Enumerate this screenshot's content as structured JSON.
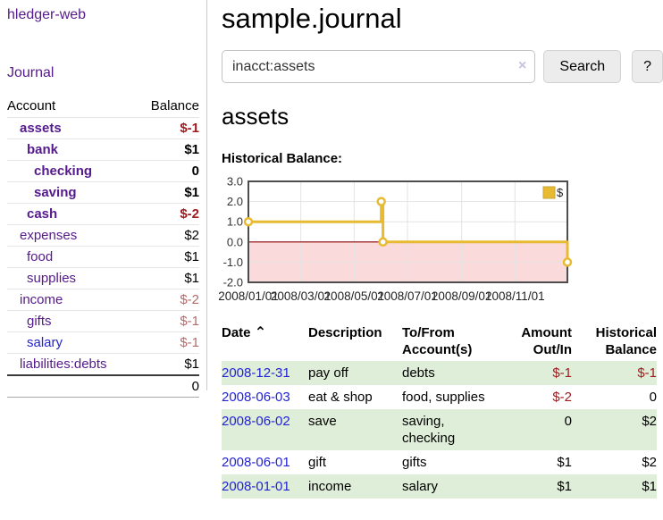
{
  "app": {
    "title": "hledger-web"
  },
  "sidebar": {
    "journal_label": "Journal",
    "accounts": {
      "account_header": "Account",
      "balance_header": "Balance",
      "rows": [
        {
          "name": "assets",
          "depth": 1,
          "bold": true,
          "link_style": "purple",
          "balance": "$-1",
          "balance_style": "negative"
        },
        {
          "name": "bank",
          "depth": 2,
          "bold": true,
          "link_style": "purple",
          "balance": "$1",
          "balance_style": "normal"
        },
        {
          "name": "checking",
          "depth": 3,
          "bold": true,
          "link_style": "purple",
          "balance": "0",
          "balance_style": "normal"
        },
        {
          "name": "saving",
          "depth": 3,
          "bold": true,
          "link_style": "purple",
          "balance": "$1",
          "balance_style": "normal"
        },
        {
          "name": "cash",
          "depth": 2,
          "bold": true,
          "link_style": "purple",
          "balance": "$-2",
          "balance_style": "negative"
        },
        {
          "name": "expenses",
          "depth": 1,
          "bold": false,
          "link_style": "purple",
          "balance": "$2",
          "balance_style": "normal"
        },
        {
          "name": "food",
          "depth": 2,
          "bold": false,
          "link_style": "purple",
          "balance": "$1",
          "balance_style": "normal"
        },
        {
          "name": "supplies",
          "depth": 2,
          "bold": false,
          "link_style": "purple",
          "balance": "$1",
          "balance_style": "normal"
        },
        {
          "name": "income",
          "depth": 1,
          "bold": false,
          "link_style": "purple",
          "balance": "$-2",
          "balance_style": "negative-muted"
        },
        {
          "name": "gifts",
          "depth": 2,
          "bold": false,
          "link_style": "purple",
          "balance": "$-1",
          "balance_style": "negative-muted"
        },
        {
          "name": "salary",
          "depth": 2,
          "bold": false,
          "link_style": "blue",
          "balance": "$-1",
          "balance_style": "negative-muted"
        },
        {
          "name": "liabilities:debts",
          "depth": 1,
          "bold": false,
          "link_style": "purple",
          "balance": "$1",
          "balance_style": "normal"
        }
      ],
      "total": "0"
    }
  },
  "main": {
    "title": "sample.journal",
    "search": {
      "value": "inacct:assets",
      "clear_icon": "×",
      "button_label": "Search",
      "help_label": "?"
    },
    "account_heading": "assets",
    "chart_label": "Historical Balance:"
  },
  "chart_data": {
    "type": "line",
    "step": true,
    "title": "Historical Balance",
    "legend": [
      {
        "label": "$",
        "color": "#e8ba31"
      }
    ],
    "legend_position": "top-right",
    "grid": true,
    "colors": {
      "line": "#e8ba31",
      "marker_fill": "#ffffff",
      "negative_region_fill": "#fadada",
      "zero_line": "#8b0000",
      "gridline": "#e3e3e3",
      "border": "#4d4d4d"
    },
    "xlim_days": [
      0,
      365
    ],
    "ylim": [
      -2,
      3
    ],
    "y_ticks": [
      {
        "label": "3.0",
        "value": 3
      },
      {
        "label": "2.0",
        "value": 2
      },
      {
        "label": "1.0",
        "value": 1
      },
      {
        "label": "0.0",
        "value": 0
      },
      {
        "label": "-1.0",
        "value": -1
      },
      {
        "label": "-2.0",
        "value": -2
      }
    ],
    "x_ticks": [
      {
        "label": "2008/01/01",
        "day": 0
      },
      {
        "label": "2008/03/01",
        "day": 60
      },
      {
        "label": "2008/05/01",
        "day": 121
      },
      {
        "label": "2008/07/01",
        "day": 182
      },
      {
        "label": "2008/09/01",
        "day": 244
      },
      {
        "label": "2008/11/01",
        "day": 305
      }
    ],
    "series": [
      {
        "name": "$",
        "points": [
          {
            "date": "2008-01-01",
            "day": 0,
            "value": 1
          },
          {
            "date": "2008-06-01",
            "day": 152,
            "value": 2
          },
          {
            "date": "2008-06-03",
            "day": 154,
            "value": 0
          },
          {
            "date": "2008-12-31",
            "day": 365,
            "value": -1
          }
        ]
      }
    ]
  },
  "register": {
    "headers": {
      "date": "Date",
      "sort_icon": "⌃",
      "description": "Description",
      "account_line1": "To/From",
      "account_line2": "Account(s)",
      "amount_line1": "Amount",
      "amount_line2": "Out/In",
      "balance_line1": "Historical",
      "balance_line2": "Balance"
    },
    "rows": [
      {
        "date": "2008-12-31",
        "description": "pay off",
        "accounts": "debts",
        "amount": "$-1",
        "amount_negative": true,
        "balance": "$-1",
        "balance_negative": true
      },
      {
        "date": "2008-06-03",
        "description": "eat & shop",
        "accounts": "food, supplies",
        "amount": "$-2",
        "amount_negative": true,
        "balance": "0",
        "balance_negative": false
      },
      {
        "date": "2008-06-02",
        "description": "save",
        "accounts": "saving, checking",
        "amount": "0",
        "amount_negative": false,
        "balance": "$2",
        "balance_negative": false
      },
      {
        "date": "2008-06-01",
        "description": "gift",
        "accounts": "gifts",
        "amount": "$1",
        "amount_negative": false,
        "balance": "$2",
        "balance_negative": false
      },
      {
        "date": "2008-01-01",
        "description": "income",
        "accounts": "salary",
        "amount": "$1",
        "amount_negative": false,
        "balance": "$1",
        "balance_negative": false
      }
    ]
  }
}
